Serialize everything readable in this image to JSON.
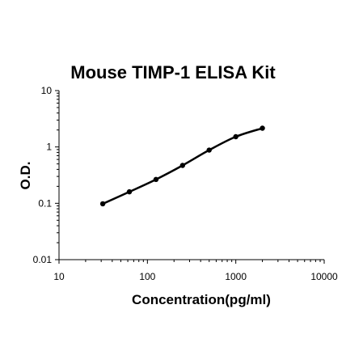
{
  "chart_data": {
    "type": "scatter",
    "title": "Mouse TIMP-1 ELISA Kit",
    "xlabel": "Concentration(pg/ml)",
    "ylabel": "O.D.",
    "xscale": "log",
    "yscale": "log",
    "xlim": [
      10,
      10000
    ],
    "ylim": [
      0.01,
      10
    ],
    "x_ticks": [
      {
        "value": 10,
        "label": "10"
      },
      {
        "value": 100,
        "label": "100"
      },
      {
        "value": 1000,
        "label": "1000"
      },
      {
        "value": 10000,
        "label": "10000"
      }
    ],
    "y_ticks": [
      {
        "value": 0.01,
        "label": "0.01"
      },
      {
        "value": 0.1,
        "label": "0.1"
      },
      {
        "value": 1,
        "label": "1"
      },
      {
        "value": 10,
        "label": "10"
      }
    ],
    "grid": false,
    "legend": "none",
    "series": [
      {
        "x": [
          31.25,
          62.5,
          125,
          250,
          500,
          1000,
          2000
        ],
        "y": [
          0.098,
          0.16,
          0.265,
          0.47,
          0.88,
          1.52,
          2.15
        ]
      }
    ],
    "color": "#000000"
  }
}
